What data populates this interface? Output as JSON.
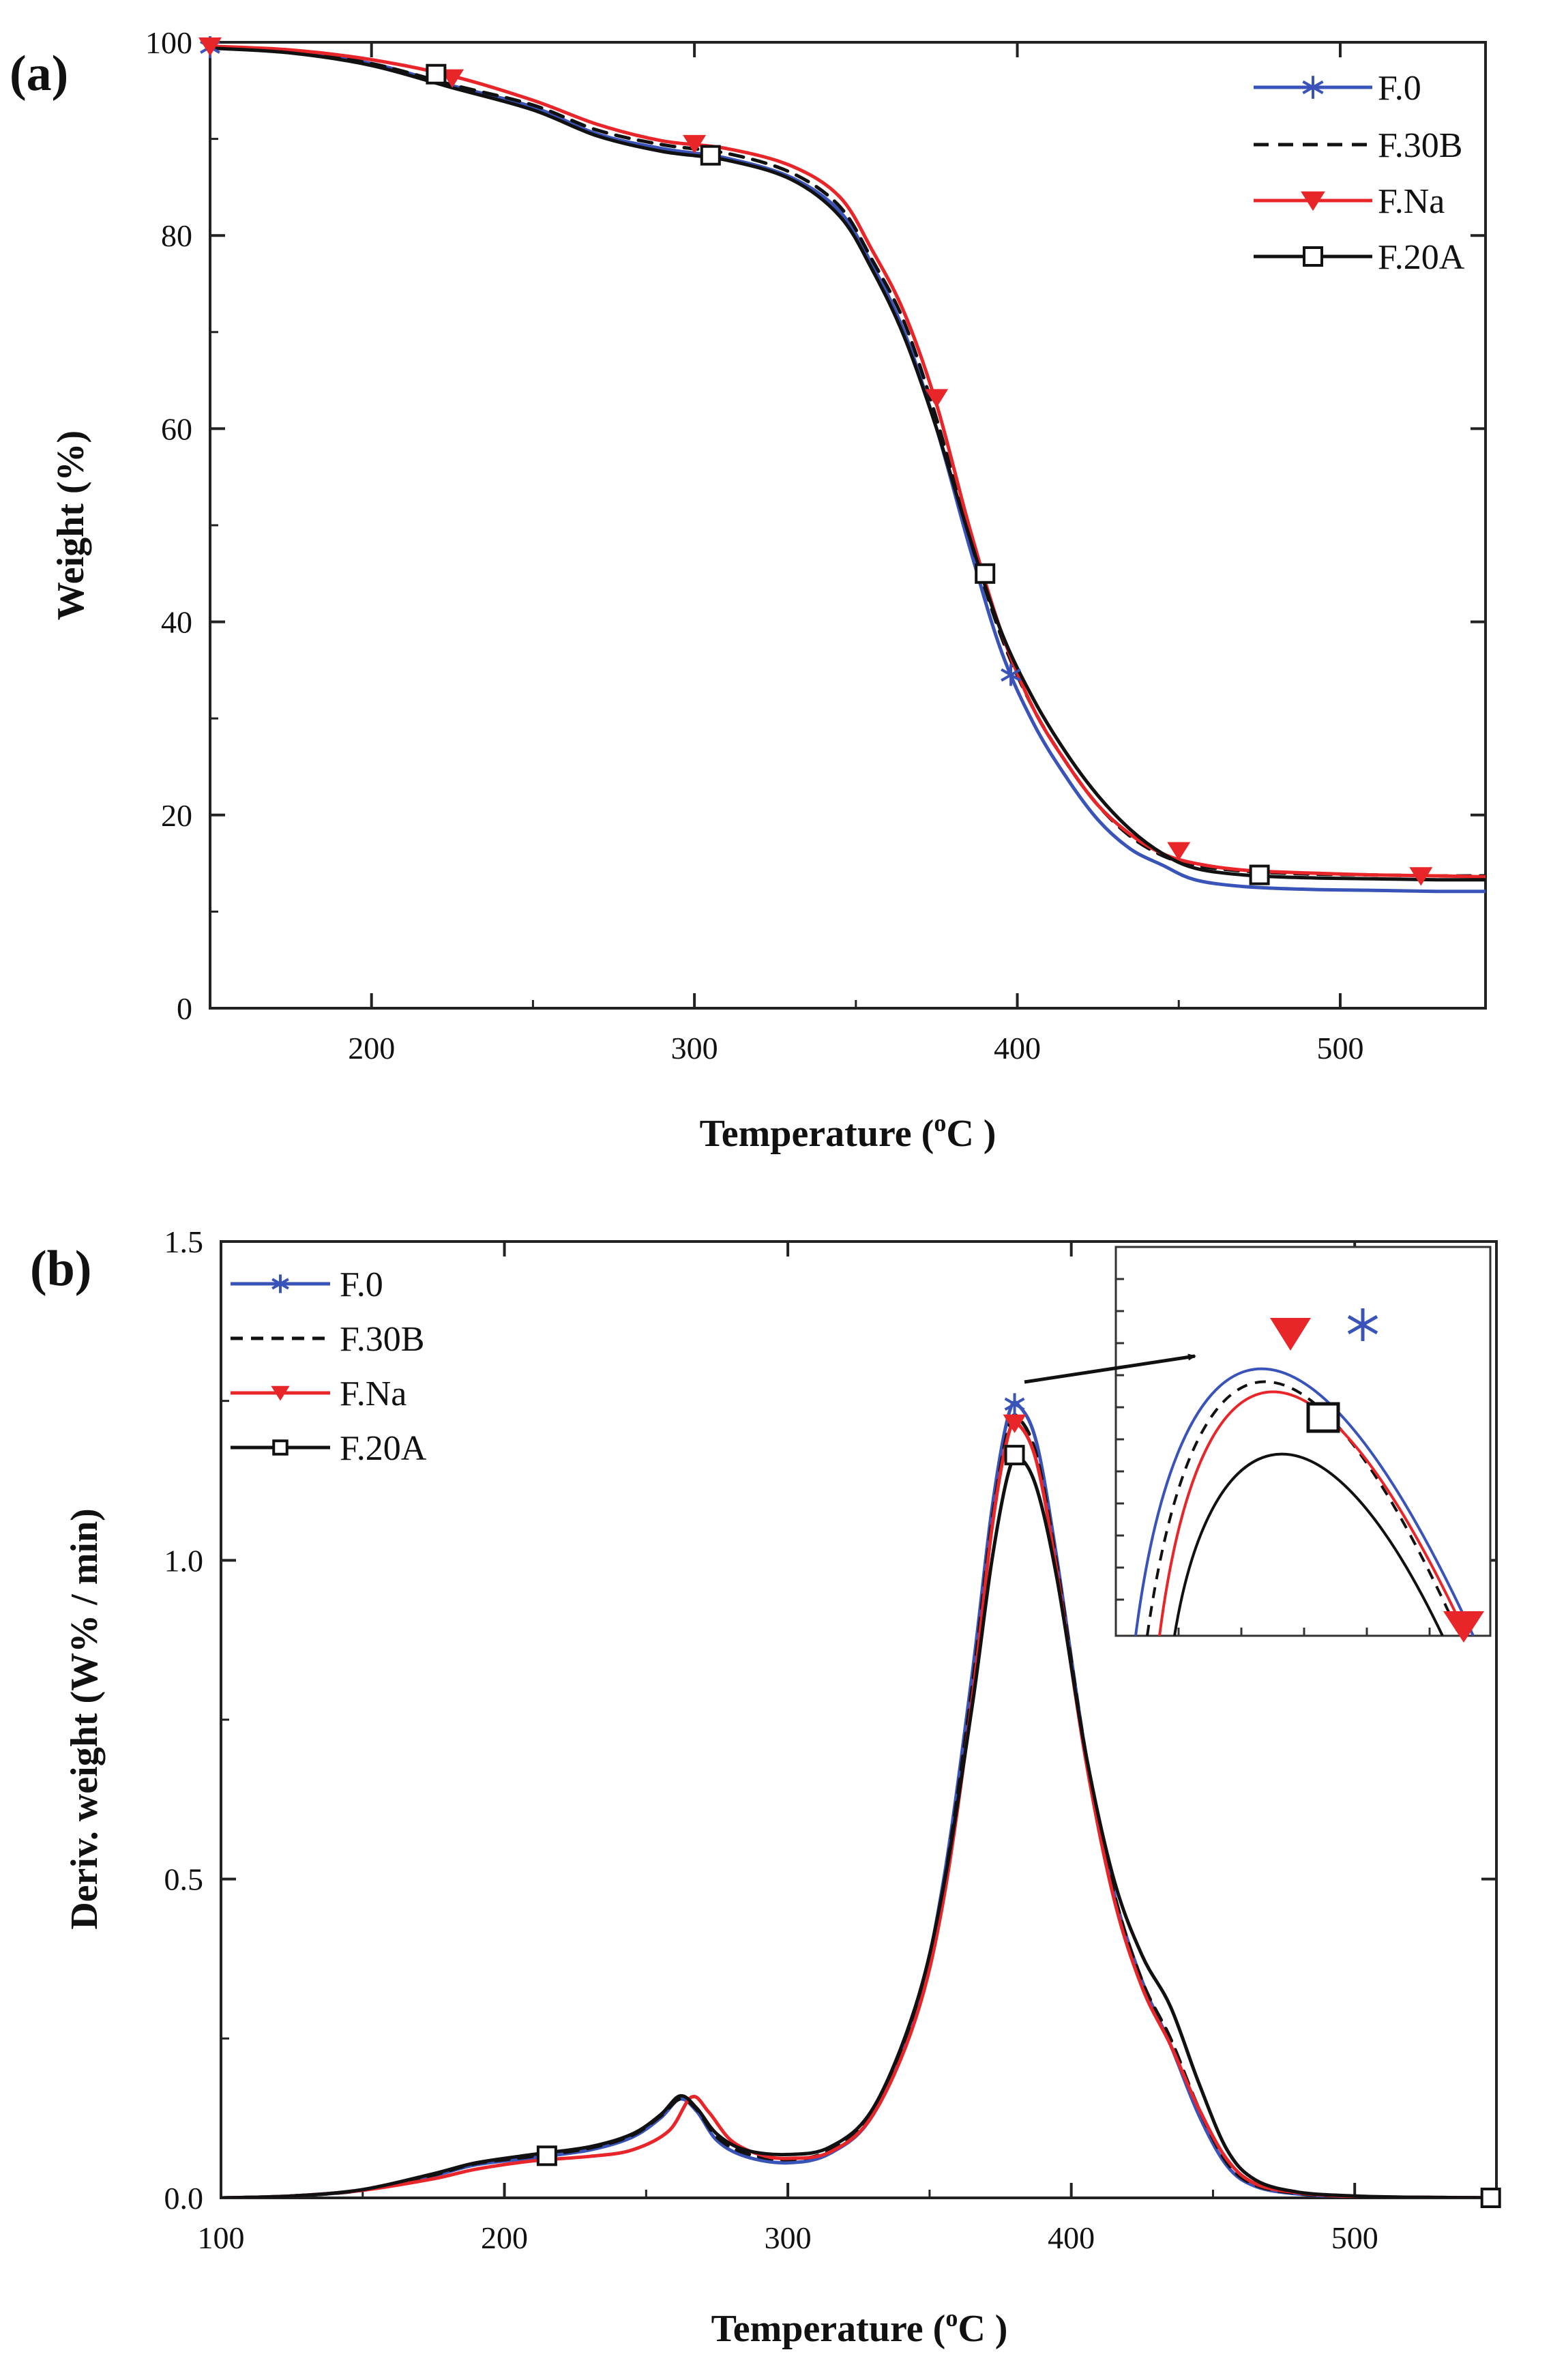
{
  "chart_data": [
    {
      "panel": "(a)",
      "type": "line",
      "xlabel_main": "Temperature (",
      "xlabel_sup": "o",
      "xlabel_rest": "C )",
      "ylabel": "Weight (%)",
      "xlim": [
        150,
        545
      ],
      "ylim": [
        0,
        100
      ],
      "xticks": [
        "200",
        "300",
        "400",
        "500"
      ],
      "xtick_values": [
        200,
        300,
        400,
        500
      ],
      "yticks": [
        "0",
        "20",
        "40",
        "60",
        "80",
        "100"
      ],
      "ytick_values": [
        0,
        20,
        40,
        60,
        80,
        100
      ],
      "legend_position": "top-right",
      "series": [
        {
          "name": "F.0",
          "color": "#3a53b8",
          "dash": "solid",
          "marker": "star",
          "x": [
            150,
            175,
            200,
            225,
            250,
            270,
            290,
            310,
            330,
            345,
            355,
            365,
            375,
            385,
            395,
            405,
            415,
            425,
            435,
            445,
            455,
            470,
            490,
            510,
            530,
            545
          ],
          "y": [
            99.5,
            99.0,
            97.8,
            95.5,
            93.3,
            90.5,
            89.0,
            88.0,
            86.0,
            82.5,
            77.0,
            70.0,
            60.0,
            48.0,
            37.0,
            29.5,
            24.0,
            19.5,
            16.5,
            14.8,
            13.3,
            12.6,
            12.3,
            12.2,
            12.1,
            12.1
          ],
          "markers_x": [
            150,
            398
          ],
          "markers_y": [
            99.5,
            34.5
          ]
        },
        {
          "name": "F.30B",
          "color": "#111111",
          "dash": "dashed",
          "marker": "none",
          "x": [
            150,
            175,
            200,
            225,
            250,
            270,
            290,
            310,
            330,
            345,
            355,
            365,
            375,
            385,
            395,
            405,
            415,
            425,
            435,
            445,
            455,
            470,
            490,
            510,
            530,
            545
          ],
          "y": [
            99.5,
            99.0,
            97.8,
            95.6,
            93.5,
            90.9,
            89.4,
            88.5,
            86.5,
            83.0,
            77.5,
            71.0,
            61.0,
            49.0,
            38.5,
            31.0,
            25.5,
            21.0,
            17.8,
            15.8,
            14.8,
            14.2,
            13.9,
            13.8,
            13.7,
            13.7
          ],
          "markers_x": [],
          "markers_y": []
        },
        {
          "name": "F.Na",
          "color": "#e8262a",
          "dash": "solid",
          "marker": "down-triangle",
          "x": [
            150,
            175,
            200,
            225,
            250,
            270,
            290,
            310,
            330,
            345,
            355,
            365,
            375,
            385,
            395,
            405,
            415,
            425,
            435,
            445,
            455,
            470,
            490,
            510,
            530,
            545
          ],
          "y": [
            99.6,
            99.2,
            98.2,
            96.5,
            94.0,
            91.5,
            89.8,
            89.0,
            87.2,
            84.0,
            78.5,
            72.0,
            62.5,
            50.0,
            39.0,
            31.0,
            25.5,
            21.0,
            18.0,
            16.0,
            15.0,
            14.3,
            14.0,
            13.8,
            13.7,
            13.6
          ],
          "markers_x": [
            150,
            225,
            300,
            375,
            450,
            525
          ],
          "markers_y": [
            99.6,
            96.3,
            89.5,
            63.2,
            16.3,
            13.7
          ]
        },
        {
          "name": "F.20A",
          "color": "#111111",
          "dash": "solid",
          "marker": "square",
          "x": [
            150,
            175,
            200,
            225,
            250,
            270,
            290,
            310,
            330,
            345,
            355,
            365,
            375,
            385,
            395,
            405,
            415,
            425,
            435,
            445,
            455,
            470,
            490,
            510,
            530,
            545
          ],
          "y": [
            99.4,
            98.9,
            97.6,
            95.3,
            93.0,
            90.3,
            88.7,
            87.8,
            85.8,
            82.0,
            76.5,
            69.5,
            60.0,
            49.0,
            39.0,
            32.0,
            26.5,
            22.0,
            18.5,
            16.0,
            14.5,
            13.8,
            13.5,
            13.4,
            13.3,
            13.3
          ],
          "markers_x": [
            220,
            305,
            390,
            475
          ],
          "markers_y": [
            96.7,
            88.3,
            45.0,
            13.8
          ]
        }
      ]
    },
    {
      "panel": "(b)",
      "type": "line",
      "xlabel_main": "Temperature (",
      "xlabel_sup": "o",
      "xlabel_rest": "C )",
      "ylabel": "Deriv. weight (W% / min)",
      "xlim": [
        100,
        550
      ],
      "ylim": [
        0,
        1.5
      ],
      "xticks": [
        "100",
        "200",
        "300",
        "400",
        "500"
      ],
      "xtick_values": [
        100,
        200,
        300,
        400,
        500
      ],
      "yticks": [
        "0.0",
        "0.5",
        "1.0",
        "1.5"
      ],
      "ytick_values": [
        0,
        0.5,
        1.0,
        1.5
      ],
      "legend_position": "top-left",
      "inset": "zoomed view of the peak near 380 °C, arrow pointing from the peak to the inset",
      "series": [
        {
          "name": "F.0",
          "color": "#3a53b8",
          "dash": "solid",
          "marker": "star",
          "x": [
            100,
            125,
            150,
            175,
            190,
            210,
            230,
            245,
            255,
            262,
            268,
            275,
            285,
            300,
            315,
            330,
            345,
            355,
            365,
            372,
            378,
            382,
            388,
            395,
            405,
            415,
            425,
            435,
            445,
            455,
            465,
            480,
            500,
            520,
            550
          ],
          "y": [
            0,
            0.003,
            0.012,
            0.035,
            0.052,
            0.063,
            0.075,
            0.095,
            0.125,
            0.155,
            0.135,
            0.09,
            0.065,
            0.055,
            0.07,
            0.13,
            0.29,
            0.5,
            0.82,
            1.08,
            1.23,
            1.24,
            1.18,
            1.0,
            0.7,
            0.48,
            0.34,
            0.24,
            0.13,
            0.05,
            0.018,
            0.006,
            0.002,
            0.001,
            0
          ],
          "markers_x": [
            380
          ],
          "markers_y": [
            1.245
          ]
        },
        {
          "name": "F.30B",
          "color": "#111111",
          "dash": "dashed",
          "marker": "none",
          "x": [
            100,
            125,
            150,
            175,
            190,
            210,
            230,
            245,
            255,
            262,
            268,
            275,
            285,
            300,
            315,
            330,
            345,
            355,
            365,
            372,
            378,
            382,
            388,
            395,
            405,
            415,
            425,
            435,
            445,
            455,
            465,
            480,
            500,
            520,
            550
          ],
          "y": [
            0,
            0.003,
            0.012,
            0.036,
            0.054,
            0.065,
            0.078,
            0.098,
            0.128,
            0.155,
            0.138,
            0.095,
            0.07,
            0.06,
            0.075,
            0.135,
            0.29,
            0.49,
            0.8,
            1.06,
            1.21,
            1.22,
            1.16,
            0.99,
            0.7,
            0.48,
            0.34,
            0.25,
            0.14,
            0.055,
            0.02,
            0.007,
            0.002,
            0.001,
            0
          ],
          "markers_x": [],
          "markers_y": []
        },
        {
          "name": "F.Na",
          "color": "#e8262a",
          "dash": "solid",
          "marker": "down-triangle",
          "x": [
            100,
            125,
            150,
            175,
            190,
            210,
            230,
            245,
            258,
            266,
            272,
            280,
            290,
            300,
            315,
            330,
            345,
            355,
            365,
            372,
            378,
            382,
            388,
            395,
            405,
            415,
            425,
            435,
            445,
            455,
            465,
            480,
            500,
            520,
            550
          ],
          "y": [
            0,
            0.003,
            0.012,
            0.03,
            0.045,
            0.058,
            0.065,
            0.075,
            0.105,
            0.158,
            0.135,
            0.09,
            0.068,
            0.062,
            0.072,
            0.13,
            0.28,
            0.47,
            0.78,
            1.05,
            1.2,
            1.21,
            1.15,
            0.98,
            0.69,
            0.47,
            0.33,
            0.24,
            0.14,
            0.06,
            0.022,
            0.008,
            0.002,
            0.001,
            0
          ],
          "markers_x": [
            380
          ],
          "markers_y": [
            1.215
          ]
        },
        {
          "name": "F.20A",
          "color": "#111111",
          "dash": "solid",
          "marker": "square",
          "x": [
            100,
            125,
            150,
            175,
            190,
            210,
            230,
            245,
            255,
            262,
            268,
            275,
            285,
            300,
            315,
            330,
            345,
            355,
            365,
            372,
            378,
            382,
            388,
            395,
            405,
            415,
            425,
            435,
            445,
            455,
            465,
            480,
            500,
            520,
            550
          ],
          "y": [
            0,
            0.003,
            0.013,
            0.038,
            0.055,
            0.068,
            0.08,
            0.1,
            0.13,
            0.16,
            0.14,
            0.1,
            0.075,
            0.068,
            0.08,
            0.14,
            0.3,
            0.49,
            0.77,
            1.0,
            1.14,
            1.16,
            1.11,
            0.97,
            0.7,
            0.5,
            0.38,
            0.3,
            0.18,
            0.075,
            0.028,
            0.009,
            0.003,
            0.001,
            0
          ],
          "markers_x": [
            215,
            380,
            548
          ],
          "markers_y": [
            0.066,
            1.165,
            0
          ]
        }
      ]
    }
  ]
}
